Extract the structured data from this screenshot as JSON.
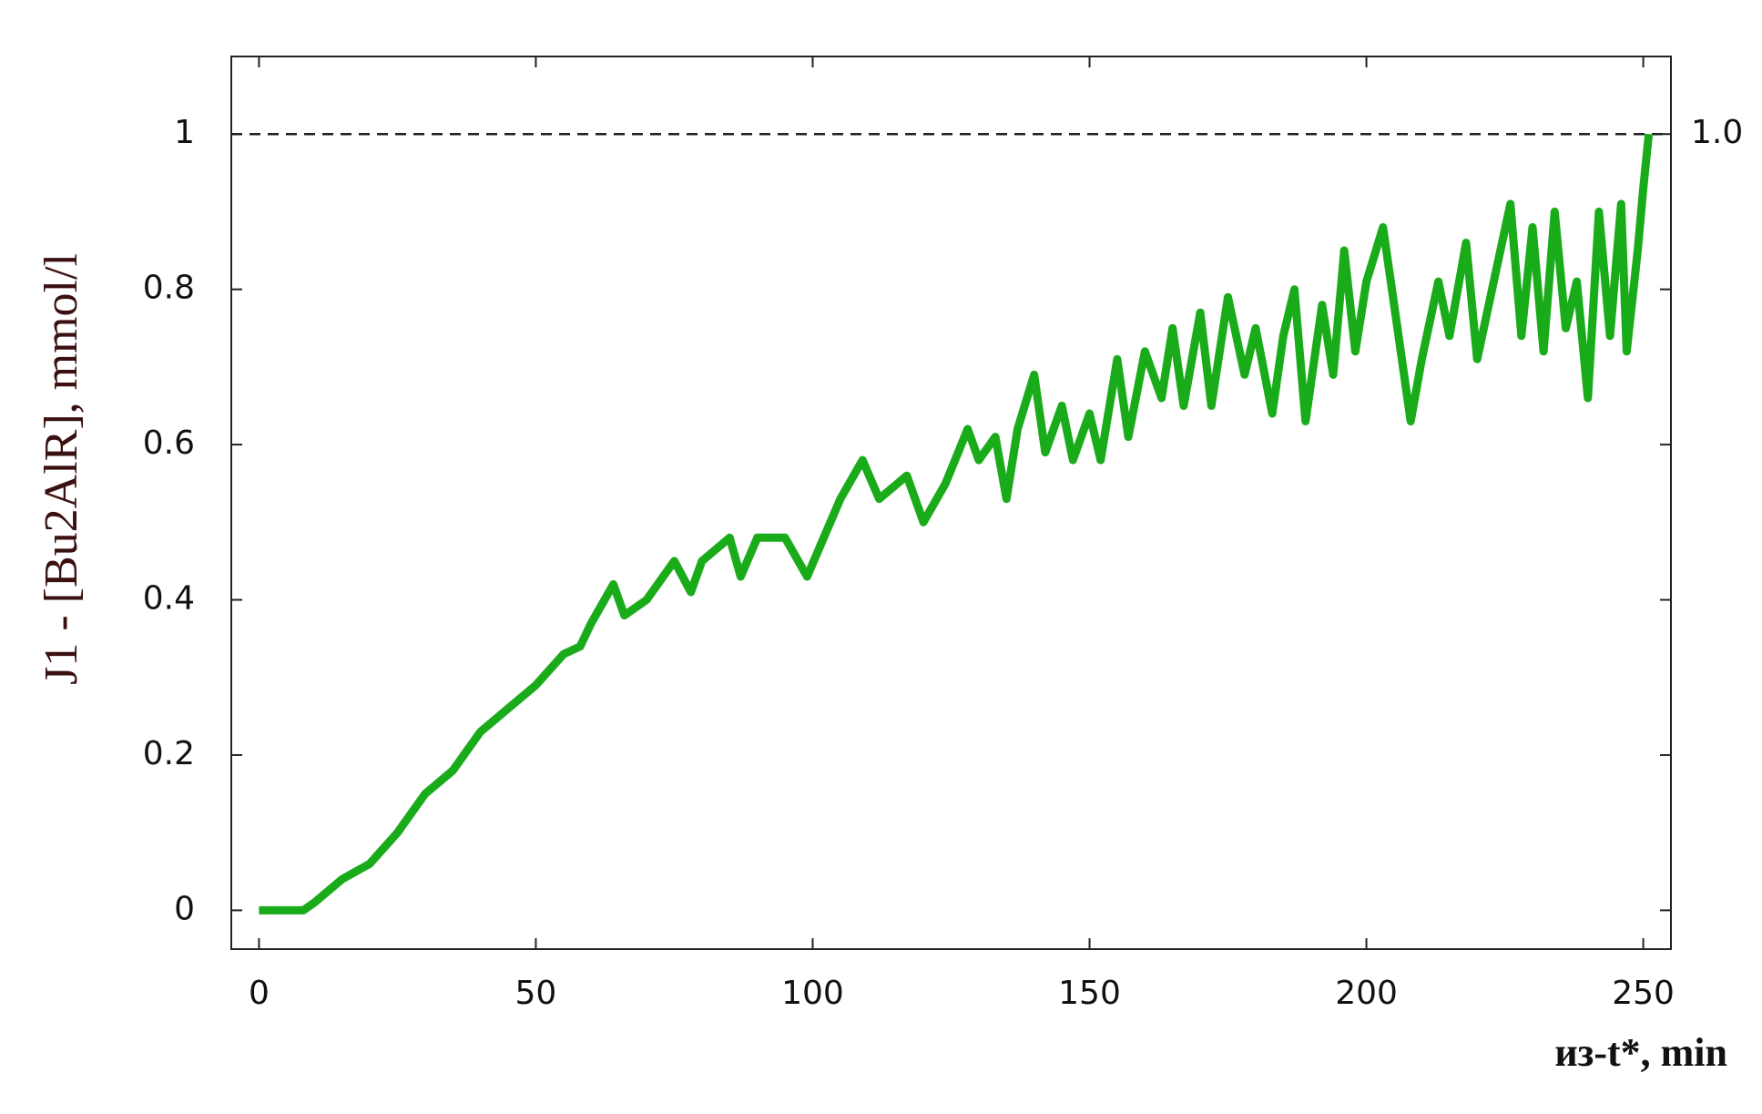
{
  "chart_data": {
    "type": "line",
    "y_label": "J1 - [Bu2AlR], mmol/l",
    "x_label": "из-t*, min",
    "x": [
      0,
      8,
      10,
      15,
      20,
      25,
      30,
      35,
      40,
      45,
      50,
      55,
      58,
      60,
      64,
      66,
      70,
      75,
      78,
      80,
      85,
      87,
      90,
      95,
      99,
      102,
      105,
      109,
      112,
      117,
      120,
      124,
      128,
      130,
      133,
      135,
      137,
      140,
      142,
      145,
      147,
      150,
      152,
      155,
      157,
      160,
      163,
      165,
      167,
      170,
      172,
      175,
      178,
      180,
      183,
      185,
      187,
      189,
      192,
      194,
      196,
      198,
      200,
      203,
      205,
      208,
      210,
      213,
      215,
      218,
      220,
      223,
      226,
      228,
      230,
      232,
      234,
      236,
      238,
      240,
      242,
      244,
      246,
      247,
      249,
      250,
      251
    ],
    "series": [
      {
        "color": "#1aab1a",
        "values": [
          0,
          0,
          0.01,
          0.04,
          0.06,
          0.1,
          0.15,
          0.18,
          0.23,
          0.26,
          0.29,
          0.33,
          0.34,
          0.37,
          0.42,
          0.38,
          0.4,
          0.45,
          0.41,
          0.45,
          0.48,
          0.43,
          0.48,
          0.48,
          0.43,
          0.48,
          0.53,
          0.58,
          0.53,
          0.56,
          0.5,
          0.55,
          0.62,
          0.58,
          0.61,
          0.53,
          0.62,
          0.69,
          0.59,
          0.65,
          0.58,
          0.64,
          0.58,
          0.71,
          0.61,
          0.72,
          0.66,
          0.75,
          0.65,
          0.77,
          0.65,
          0.79,
          0.69,
          0.75,
          0.64,
          0.74,
          0.8,
          0.63,
          0.78,
          0.69,
          0.85,
          0.72,
          0.81,
          0.88,
          0.78,
          0.63,
          0.71,
          0.81,
          0.74,
          0.86,
          0.71,
          0.81,
          0.91,
          0.74,
          0.88,
          0.72,
          0.9,
          0.75,
          0.81,
          0.66,
          0.9,
          0.74,
          0.91,
          0.72,
          0.85,
          0.93,
          1.0
        ]
      }
    ],
    "xlim": [
      -5,
      255
    ],
    "xticks": [
      0,
      50,
      100,
      150,
      200,
      250
    ],
    "ylim": [
      -0.05,
      1.1
    ],
    "yticks": [
      0,
      0.2,
      0.4,
      0.6,
      0.8,
      1
    ],
    "reference_line": {
      "value": 1,
      "label": "1.0"
    }
  }
}
